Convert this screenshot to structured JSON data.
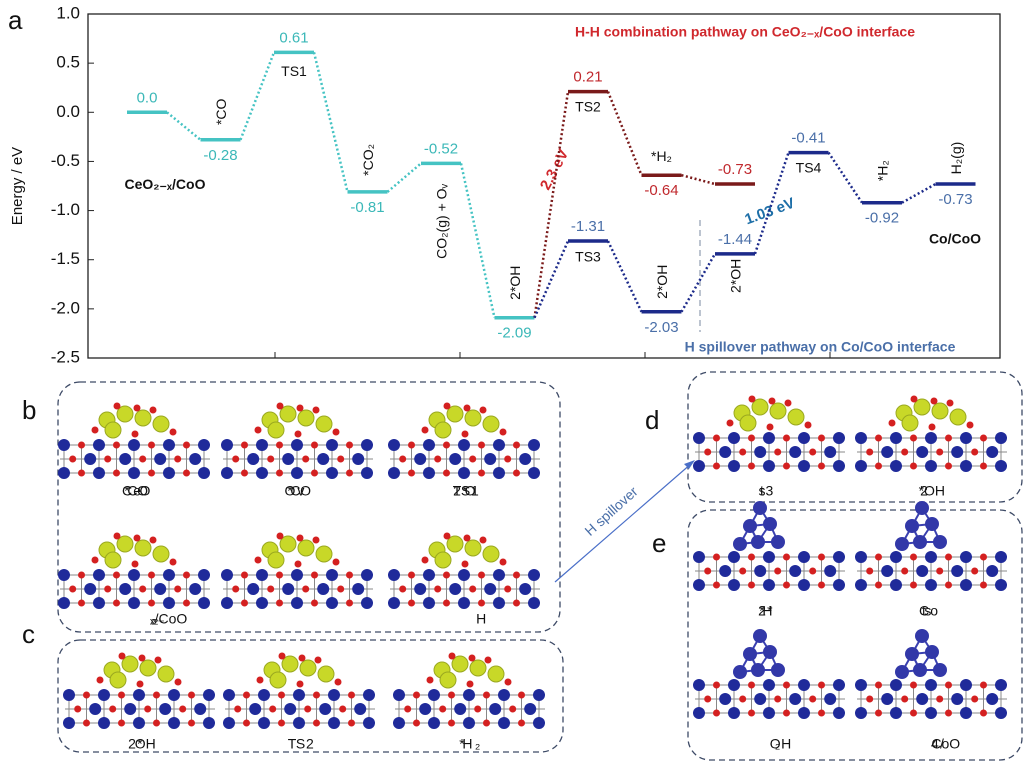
{
  "panel_labels": [
    "a",
    "b",
    "c",
    "d",
    "e"
  ],
  "chart_data": {
    "type": "energy-profile",
    "ylabel": "Energy / eV",
    "ylim": [
      -2.5,
      1.0
    ],
    "yticks": [
      {
        "value": 1.0,
        "label": "1.0"
      },
      0.5,
      {
        "value": 0,
        "label": "0.0"
      },
      -0.5,
      {
        "value": -1,
        "label": "-1.0"
      },
      -1.5,
      {
        "value": -2,
        "label": "-2.0"
      },
      -2.5
    ],
    "series": [
      {
        "color": "#45c3c3",
        "label_color": "#3bb8b8",
        "values": [
          0,
          -0.28,
          0.61,
          -0.81,
          -0.52,
          -2.09,
          null,
          null,
          null,
          null,
          null,
          null
        ],
        "value_labels": [
          "0.0",
          "-0.28",
          "0.61",
          "-0.81",
          "-0.52",
          "-2.09",
          null,
          null,
          null,
          null,
          null,
          null
        ],
        "labels": [
          "CeO₂₋ₓ/CoO",
          "*CO",
          "TS1",
          "*CO₂",
          "CO₂(g) + Oᵥ",
          "2*OH",
          null,
          null,
          null,
          null,
          null,
          null
        ]
      },
      {
        "color": "#7a1a1a",
        "label_color": "#c0282d",
        "values": [
          null,
          null,
          null,
          null,
          null,
          null,
          0.21,
          -0.64,
          -0.73,
          null,
          null,
          null
        ],
        "value_labels": [
          null,
          null,
          null,
          null,
          null,
          null,
          "0.21",
          "-0.64",
          "-0.73",
          null,
          null,
          null
        ],
        "labels": [
          null,
          null,
          null,
          null,
          null,
          null,
          "TS2",
          "*H₂",
          null,
          null,
          null,
          null
        ]
      },
      {
        "color": "#1c2a8a",
        "label_color": "#4a6fa8",
        "values": [
          null,
          null,
          null,
          null,
          null,
          null,
          -1.31,
          -2.03,
          -1.44,
          -0.41,
          -0.92,
          -0.73
        ],
        "value_labels": [
          null,
          null,
          null,
          null,
          null,
          null,
          "-1.31",
          "-2.03",
          "-1.44",
          "-0.41",
          "-0.92",
          "-0.73"
        ],
        "labels": [
          null,
          null,
          null,
          null,
          null,
          null,
          "TS3",
          "2*OH",
          "2*OH",
          "TS4",
          "*H₂",
          "H₂(g)"
        ]
      }
    ],
    "pathway_titles": [
      "H-H combination pathway on CeO₂₋ₓ/CoO interface",
      "H spillover pathway on Co/CoO interface"
    ],
    "barriers": [
      "2.3 eV",
      "1.03 eV"
    ],
    "end_label": "Co/CoO"
  },
  "panels": {
    "b": [
      "CeO₂₋ₓ/CoO",
      "*CO",
      "TS1",
      "*CO₂",
      "Ov",
      "2*OH"
    ],
    "c": [
      "2*OH",
      "TS2",
      "*H₂"
    ],
    "d": [
      "ts3",
      "2*OH"
    ],
    "e": [
      "2*OH",
      "ts4",
      "*H₂",
      "Co/CoO"
    ]
  },
  "arrow_label": "H spillover"
}
